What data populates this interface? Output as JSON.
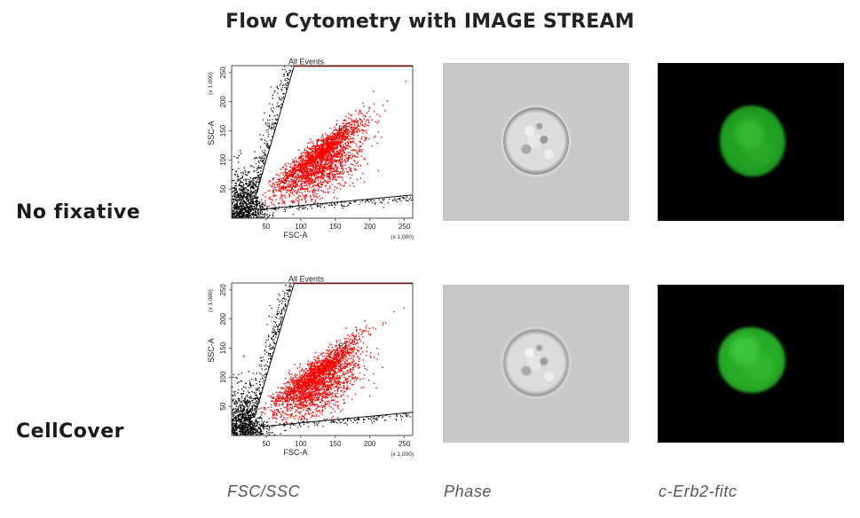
{
  "title": "Flow Cytometry with IMAGE STREAM",
  "rows": [
    {
      "label": "No fixative"
    },
    {
      "label": "CellCover"
    }
  ],
  "columns": [
    {
      "caption": "FSC/SSC"
    },
    {
      "caption": "Phase"
    },
    {
      "caption": "c-Erb2-fitc"
    }
  ],
  "colors": {
    "gated_events": "#ff0000",
    "ungated_events": "#000000",
    "gate_top_line": "#b40000",
    "phase_background": "#c8c8c8",
    "fluorescence_background": "#000000",
    "fluorescence_cell": "#2eb82e"
  },
  "chart_data": [
    {
      "type": "scatter",
      "title": "All Events",
      "xlabel": "FSC-A",
      "ylabel": "SSC-A",
      "x_multiplier_label": "(x 1,000)",
      "y_multiplier_label": "(x 1,000)",
      "xlim": [
        0,
        262
      ],
      "ylim": [
        0,
        262
      ],
      "x_ticks": [
        50,
        100,
        150,
        200,
        250
      ],
      "y_ticks": [
        50,
        100,
        150,
        200,
        250
      ],
      "gate_label": "P1",
      "gate_polygon": [
        [
          55,
          20
        ],
        [
          262,
          40
        ],
        [
          262,
          262
        ],
        [
          88,
          262
        ],
        [
          35,
          40
        ]
      ],
      "series": [
        {
          "name": "P1",
          "color": "#ff0000",
          "x_center": 120,
          "y_center": 100,
          "x_spread": 55,
          "y_spread": 55
        },
        {
          "name": "",
          "color": "#000000",
          "x_center": 20,
          "y_center": 20,
          "x_spread": 15,
          "y_spread": 30
        }
      ]
    },
    {
      "type": "scatter",
      "title": "All Events",
      "xlabel": "FSC-A",
      "ylabel": "SSC-A",
      "x_multiplier_label": "(x 1,000)",
      "y_multiplier_label": "(x 1,000)",
      "xlim": [
        0,
        262
      ],
      "ylim": [
        0,
        262
      ],
      "x_ticks": [
        50,
        100,
        150,
        200,
        250
      ],
      "y_ticks": [
        50,
        100,
        150,
        200,
        250
      ],
      "gate_label": "P1",
      "gate_polygon": [
        [
          55,
          20
        ],
        [
          262,
          40
        ],
        [
          262,
          262
        ],
        [
          88,
          262
        ],
        [
          35,
          40
        ]
      ],
      "series": [
        {
          "name": "P1",
          "color": "#ff0000",
          "x_center": 115,
          "y_center": 95,
          "x_spread": 55,
          "y_spread": 55
        },
        {
          "name": "",
          "color": "#000000",
          "x_center": 20,
          "y_center": 20,
          "x_spread": 15,
          "y_spread": 30
        }
      ]
    }
  ]
}
